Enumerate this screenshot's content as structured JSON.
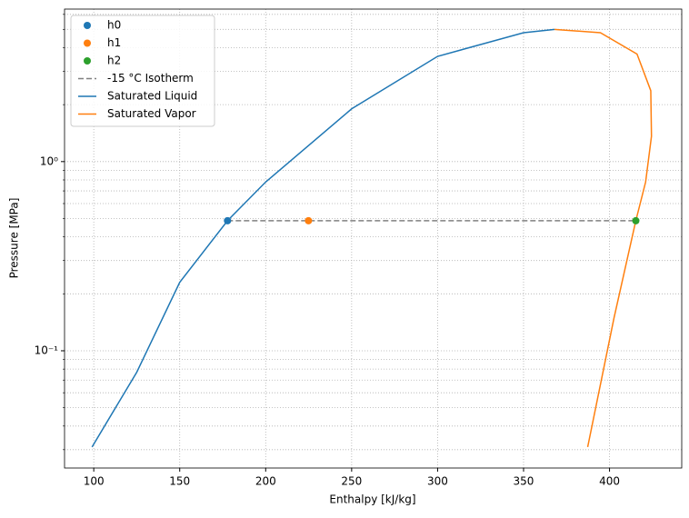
{
  "chart_data": {
    "type": "line",
    "xlabel": "Enthalpy [kJ/kg]",
    "ylabel": "Pressure [MPa]",
    "xlim": [
      83,
      442
    ],
    "ylim": [
      0.024,
      6.4
    ],
    "yscale": "log",
    "grid": true,
    "legend": "upper left",
    "xticks": [
      100,
      150,
      200,
      250,
      300,
      350,
      400
    ],
    "yticks": [
      {
        "value": 0.1,
        "label": "10⁻¹"
      },
      {
        "value": 1,
        "label": "10⁰"
      }
    ],
    "minor_yticks": [
      0.03,
      0.04,
      0.05,
      0.06,
      0.07,
      0.08,
      0.09,
      0.2,
      0.3,
      0.4,
      0.5,
      0.6,
      0.7,
      0.8,
      0.9,
      2,
      3,
      4,
      5,
      6
    ],
    "series": [
      {
        "name": "h0",
        "color": "#1f77b4",
        "kind": "scatter",
        "x": [
          177.8
        ],
        "values": [
          0.487
        ]
      },
      {
        "name": "h1",
        "color": "#ff7f0e",
        "kind": "scatter",
        "x": [
          224.9
        ],
        "values": [
          0.487
        ]
      },
      {
        "name": "h2",
        "color": "#2ca02c",
        "kind": "scatter",
        "x": [
          415.3
        ],
        "values": [
          0.487
        ]
      },
      {
        "name": "-15 °C Isotherm",
        "color": "#808080",
        "kind": "line",
        "dashed": true,
        "x": [
          177.8,
          415.3
        ],
        "values": [
          0.487,
          0.487
        ]
      },
      {
        "name": "Saturated Liquid",
        "color": "#1f77b4",
        "kind": "line",
        "x": [
          99,
          125,
          150,
          177.8,
          200,
          250,
          300,
          350,
          368
        ],
        "values": [
          0.031,
          0.077,
          0.23,
          0.487,
          0.78,
          1.9,
          3.6,
          4.8,
          5.0
        ]
      },
      {
        "name": "Saturated Vapor",
        "color": "#ff7f0e",
        "kind": "line",
        "x": [
          368,
          394.7,
          416,
          424,
          424.4,
          421,
          415.3,
          402.6,
          387.3
        ],
        "values": [
          5.0,
          4.8,
          3.7,
          2.37,
          1.36,
          0.78,
          0.487,
          0.149,
          0.031
        ]
      }
    ]
  }
}
